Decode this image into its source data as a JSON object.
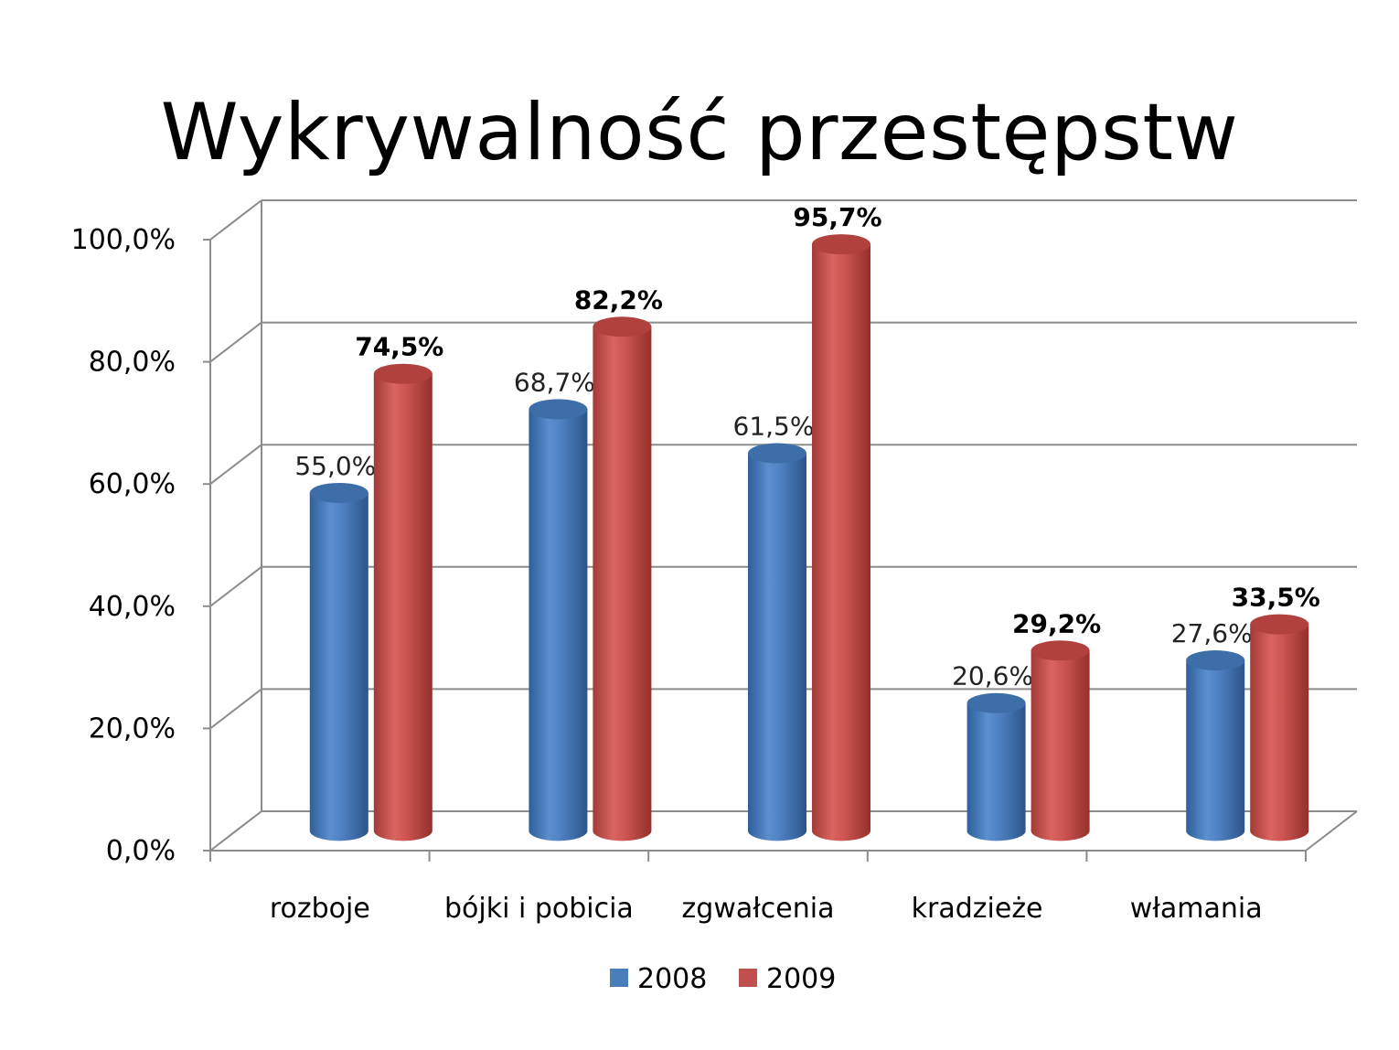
{
  "chart_data": {
    "type": "bar",
    "title": "Wykrywalność przestępstw",
    "categories": [
      "rozboje",
      "bójki i pobicia",
      "zgwałcenia",
      "kradzieże",
      "włamania"
    ],
    "series": [
      {
        "name": "2008",
        "values": [
          55.0,
          68.7,
          61.5,
          20.6,
          27.6
        ],
        "labels": [
          "55,0%",
          "68,7%",
          "61,5%",
          "20,6%",
          "27,6%"
        ],
        "color": "#4a7ebb",
        "bold": false
      },
      {
        "name": "2009",
        "values": [
          74.5,
          82.2,
          95.7,
          29.2,
          33.5
        ],
        "labels": [
          "74,5%",
          "82,2%",
          "95,7%",
          "29,2%",
          "33,5%"
        ],
        "color": "#c0504d",
        "bold": true
      }
    ],
    "ylim": [
      0,
      100
    ],
    "yticks": [
      "0,0%",
      "20,0%",
      "40,0%",
      "60,0%",
      "80,0%",
      "100,0%"
    ],
    "grid": true,
    "style": "3d-cylinder",
    "legend": "bottom"
  }
}
